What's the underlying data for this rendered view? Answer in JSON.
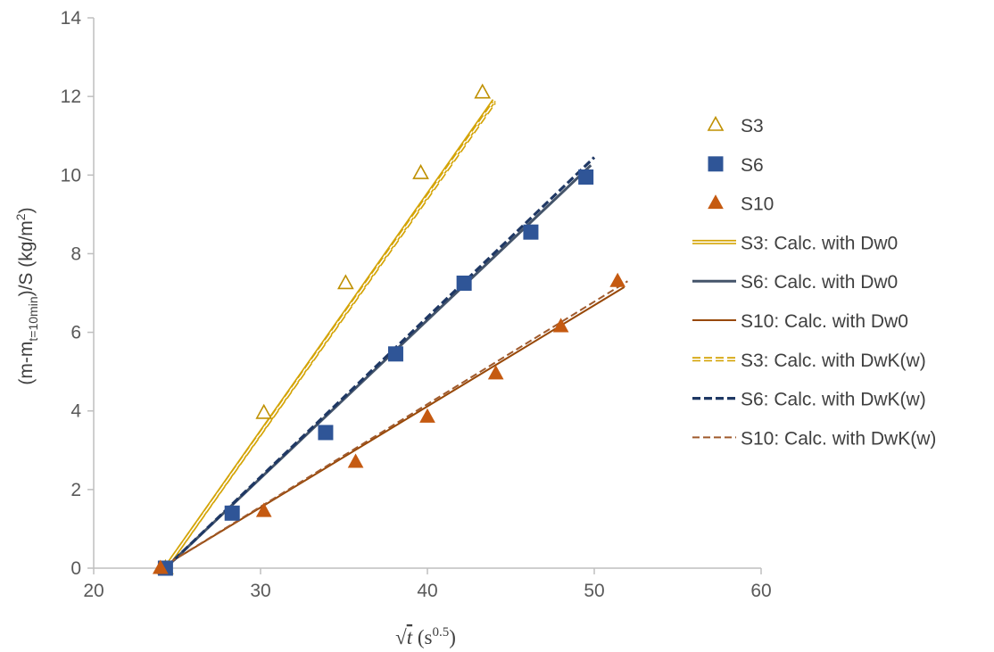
{
  "chart_data": {
    "type": "scatter",
    "xlabel": {
      "prefix": "√",
      "var": "t",
      "unit_open": " (s",
      "unit_exp": "0.5",
      "unit_close": ")"
    },
    "ylabel": {
      "p1": "(m-m",
      "sub": "t=10min",
      "p2": ")/S (kg/m",
      "sup": "2",
      "p3": ")"
    },
    "xlim": [
      20,
      60
    ],
    "ylim": [
      0,
      14
    ],
    "xticks": [
      20,
      30,
      40,
      50,
      60
    ],
    "yticks": [
      0,
      2,
      4,
      6,
      8,
      10,
      12,
      14
    ],
    "grid": false,
    "legend_position": "right",
    "series": [
      {
        "name": "S3",
        "kind": "marker",
        "marker": "triangle-open",
        "color": "#bf9000",
        "x": [
          24.3,
          30.2,
          35.1,
          39.6,
          43.3
        ],
        "y": [
          0,
          3.95,
          7.25,
          10.05,
          12.1
        ]
      },
      {
        "name": "S6",
        "kind": "marker",
        "marker": "square",
        "color": "#2f5597",
        "x": [
          24.3,
          28.3,
          33.9,
          38.1,
          42.2,
          46.2,
          49.5
        ],
        "y": [
          0,
          1.4,
          3.45,
          5.45,
          7.25,
          8.55,
          9.95
        ]
      },
      {
        "name": "S10",
        "kind": "marker",
        "marker": "triangle",
        "color": "#c55a11",
        "x": [
          24.0,
          30.2,
          35.7,
          40.0,
          44.1,
          48.0,
          51.4
        ],
        "y": [
          0,
          1.45,
          2.7,
          3.85,
          4.95,
          6.15,
          7.3
        ]
      },
      {
        "name": "S3: Calc. with Dw0",
        "kind": "line",
        "style": "double",
        "color": "#d4a406",
        "x": [
          24.3,
          44.0
        ],
        "y": [
          0,
          11.9
        ]
      },
      {
        "name": "S6: Calc. with Dw0",
        "kind": "line",
        "style": "solid",
        "color": "#44546a",
        "x": [
          24.3,
          49.8
        ],
        "y": [
          0,
          10.25
        ]
      },
      {
        "name": "S10: Calc. with Dw0",
        "kind": "line",
        "style": "solid",
        "color": "#984807",
        "x": [
          24.0,
          51.8
        ],
        "y": [
          0,
          7.15
        ]
      },
      {
        "name": "S3: Calc. with DwK(w)",
        "kind": "line",
        "style": "double-dash",
        "color": "#d4a406",
        "x": [
          24.3,
          44.0
        ],
        "y": [
          0,
          11.85
        ]
      },
      {
        "name": "S6: Calc. with DwK(w)",
        "kind": "line",
        "style": "dash",
        "color": "#1f3864",
        "x": [
          24.3,
          50.0
        ],
        "y": [
          0,
          10.45
        ]
      },
      {
        "name": "S10: Calc. with DwK(w)",
        "kind": "line",
        "style": "dash-thin",
        "color": "#a05a2c",
        "x": [
          24.0,
          52.0
        ],
        "y": [
          0,
          7.3
        ]
      }
    ]
  }
}
